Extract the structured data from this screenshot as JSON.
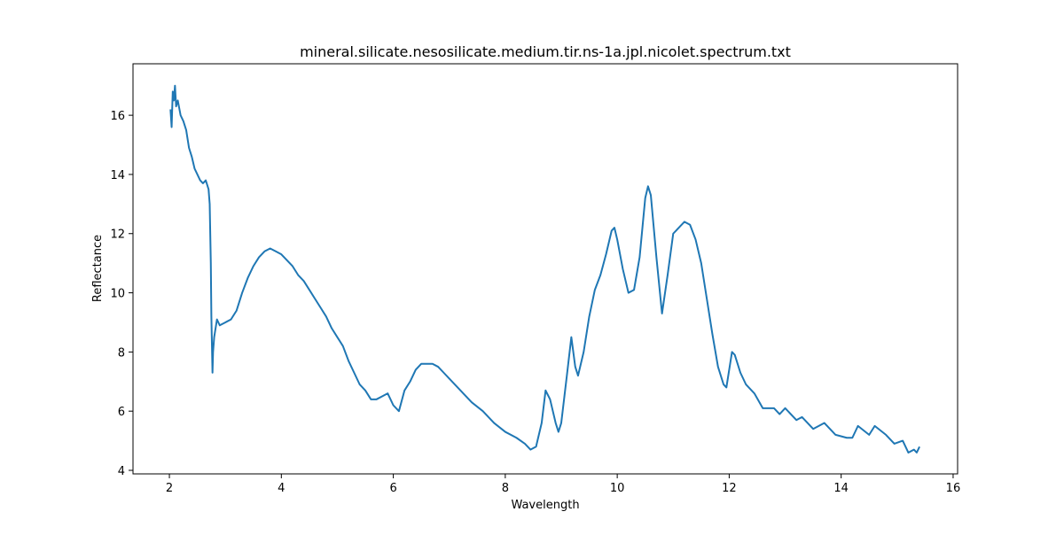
{
  "chart_data": {
    "type": "line",
    "title": "mineral.silicate.nesosilicate.medium.tir.ns-1a.jpl.nicolet.spectrum.txt",
    "xlabel": "Wavelength",
    "ylabel": "Reflectance",
    "color": "#1f77b4",
    "xlim": [
      1.35,
      16.08
    ],
    "ylim": [
      3.88,
      17.74
    ],
    "xticks": [
      2,
      4,
      6,
      8,
      10,
      12,
      14,
      16
    ],
    "yticks": [
      4,
      6,
      8,
      10,
      12,
      14,
      16
    ],
    "x": [
      2.02,
      2.04,
      2.06,
      2.08,
      2.1,
      2.12,
      2.15,
      2.2,
      2.25,
      2.3,
      2.35,
      2.4,
      2.45,
      2.5,
      2.55,
      2.6,
      2.65,
      2.7,
      2.72,
      2.74,
      2.75,
      2.77,
      2.78,
      2.8,
      2.85,
      2.9,
      3.0,
      3.1,
      3.2,
      3.3,
      3.4,
      3.5,
      3.6,
      3.7,
      3.8,
      3.9,
      4.0,
      4.1,
      4.2,
      4.3,
      4.4,
      4.5,
      4.6,
      4.7,
      4.8,
      4.9,
      5.0,
      5.1,
      5.2,
      5.3,
      5.4,
      5.5,
      5.6,
      5.7,
      5.8,
      5.9,
      6.0,
      6.1,
      6.2,
      6.3,
      6.4,
      6.5,
      6.6,
      6.7,
      6.8,
      6.9,
      7.0,
      7.2,
      7.4,
      7.6,
      7.8,
      8.0,
      8.2,
      8.35,
      8.45,
      8.55,
      8.65,
      8.72,
      8.8,
      8.9,
      8.95,
      9.0,
      9.1,
      9.18,
      9.25,
      9.3,
      9.4,
      9.5,
      9.6,
      9.7,
      9.8,
      9.9,
      9.95,
      10.0,
      10.1,
      10.2,
      10.3,
      10.4,
      10.5,
      10.55,
      10.6,
      10.7,
      10.8,
      10.9,
      11.0,
      11.1,
      11.2,
      11.3,
      11.4,
      11.5,
      11.6,
      11.7,
      11.8,
      11.9,
      11.95,
      12.05,
      12.1,
      12.2,
      12.3,
      12.45,
      12.6,
      12.8,
      12.9,
      13.0,
      13.2,
      13.3,
      13.5,
      13.7,
      13.9,
      14.1,
      14.2,
      14.3,
      14.5,
      14.6,
      14.8,
      14.95,
      15.1,
      15.2,
      15.3,
      15.35,
      15.4
    ],
    "values": [
      16.2,
      15.6,
      16.8,
      16.5,
      17.0,
      16.3,
      16.5,
      16.0,
      15.8,
      15.5,
      14.9,
      14.6,
      14.2,
      14.0,
      13.8,
      13.7,
      13.8,
      13.5,
      13.0,
      11.0,
      9.2,
      7.3,
      8.0,
      8.5,
      9.1,
      8.9,
      9.0,
      9.1,
      9.4,
      10.0,
      10.5,
      10.9,
      11.2,
      11.4,
      11.5,
      11.4,
      11.3,
      11.1,
      10.9,
      10.6,
      10.4,
      10.1,
      9.8,
      9.5,
      9.2,
      8.8,
      8.5,
      8.2,
      7.7,
      7.3,
      6.9,
      6.7,
      6.4,
      6.4,
      6.5,
      6.6,
      6.2,
      6.0,
      6.7,
      7.0,
      7.4,
      7.6,
      7.6,
      7.6,
      7.5,
      7.3,
      7.1,
      6.7,
      6.3,
      6.0,
      5.6,
      5.3,
      5.1,
      4.9,
      4.7,
      4.8,
      5.6,
      6.7,
      6.4,
      5.6,
      5.3,
      5.6,
      7.2,
      8.5,
      7.5,
      7.2,
      8.0,
      9.2,
      10.1,
      10.6,
      11.3,
      12.1,
      12.2,
      11.8,
      10.8,
      10.0,
      10.1,
      11.2,
      13.2,
      13.6,
      13.3,
      11.2,
      9.3,
      10.6,
      12.0,
      12.2,
      12.4,
      12.3,
      11.8,
      11.0,
      9.8,
      8.6,
      7.5,
      6.9,
      6.8,
      8.0,
      7.9,
      7.3,
      6.9,
      6.6,
      6.1,
      6.1,
      5.9,
      6.1,
      5.7,
      5.8,
      5.4,
      5.6,
      5.2,
      5.1,
      5.1,
      5.5,
      5.2,
      5.5,
      5.2,
      4.9,
      5.0,
      4.6,
      4.7,
      4.6,
      4.8
    ]
  }
}
